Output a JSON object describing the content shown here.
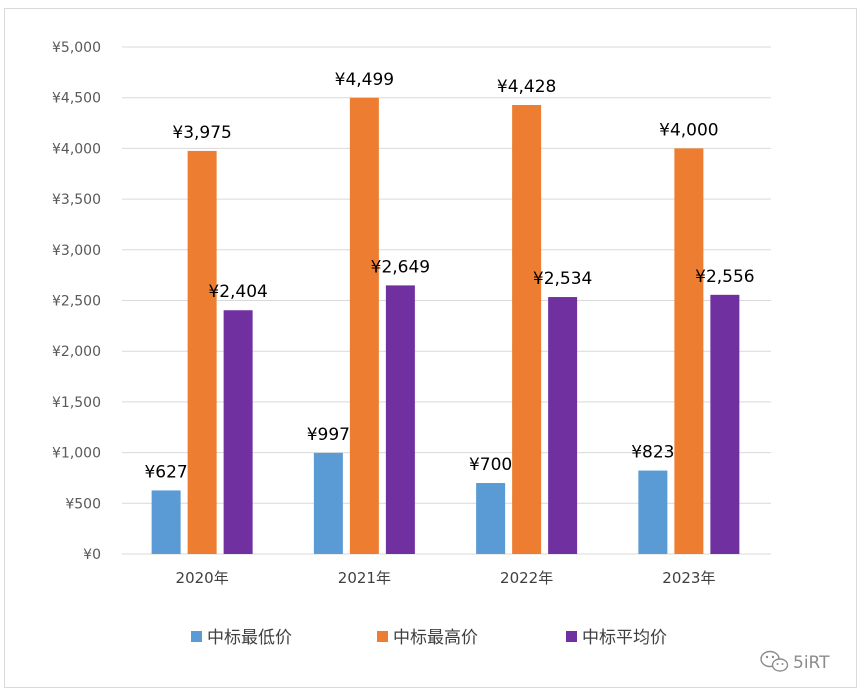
{
  "chart_data": {
    "type": "bar",
    "categories": [
      "2020年",
      "2021年",
      "2022年",
      "2023年"
    ],
    "series": [
      {
        "name": "中标最低价",
        "color": "#5b9bd5",
        "values": [
          627,
          997,
          700,
          823
        ],
        "labels": [
          "¥627",
          "¥997",
          "¥700",
          "¥823"
        ]
      },
      {
        "name": "中标最高价",
        "color": "#ed7d31",
        "values": [
          3975,
          4499,
          4428,
          4000
        ],
        "labels": [
          "¥3,975",
          "¥4,499",
          "¥4,428",
          "¥4,000"
        ]
      },
      {
        "name": "中标平均价",
        "color": "#7030a0",
        "values": [
          2404,
          2649,
          2534,
          2556
        ],
        "labels": [
          "¥2,404",
          "¥2,649",
          "¥2,534",
          "¥2,556"
        ]
      }
    ],
    "ylim": [
      0,
      5000
    ],
    "yticks": [
      0,
      500,
      1000,
      1500,
      2000,
      2500,
      3000,
      3500,
      4000,
      4500,
      5000
    ],
    "ytick_labels": [
      "¥0",
      "¥500",
      "¥1,000",
      "¥1,500",
      "¥2,000",
      "¥2,500",
      "¥3,000",
      "¥3,500",
      "¥4,000",
      "¥4,500",
      "¥5,000"
    ],
    "grid": true,
    "legend_position": "bottom"
  },
  "watermark": {
    "text": "5iRT",
    "icon": "wechat-icon"
  }
}
